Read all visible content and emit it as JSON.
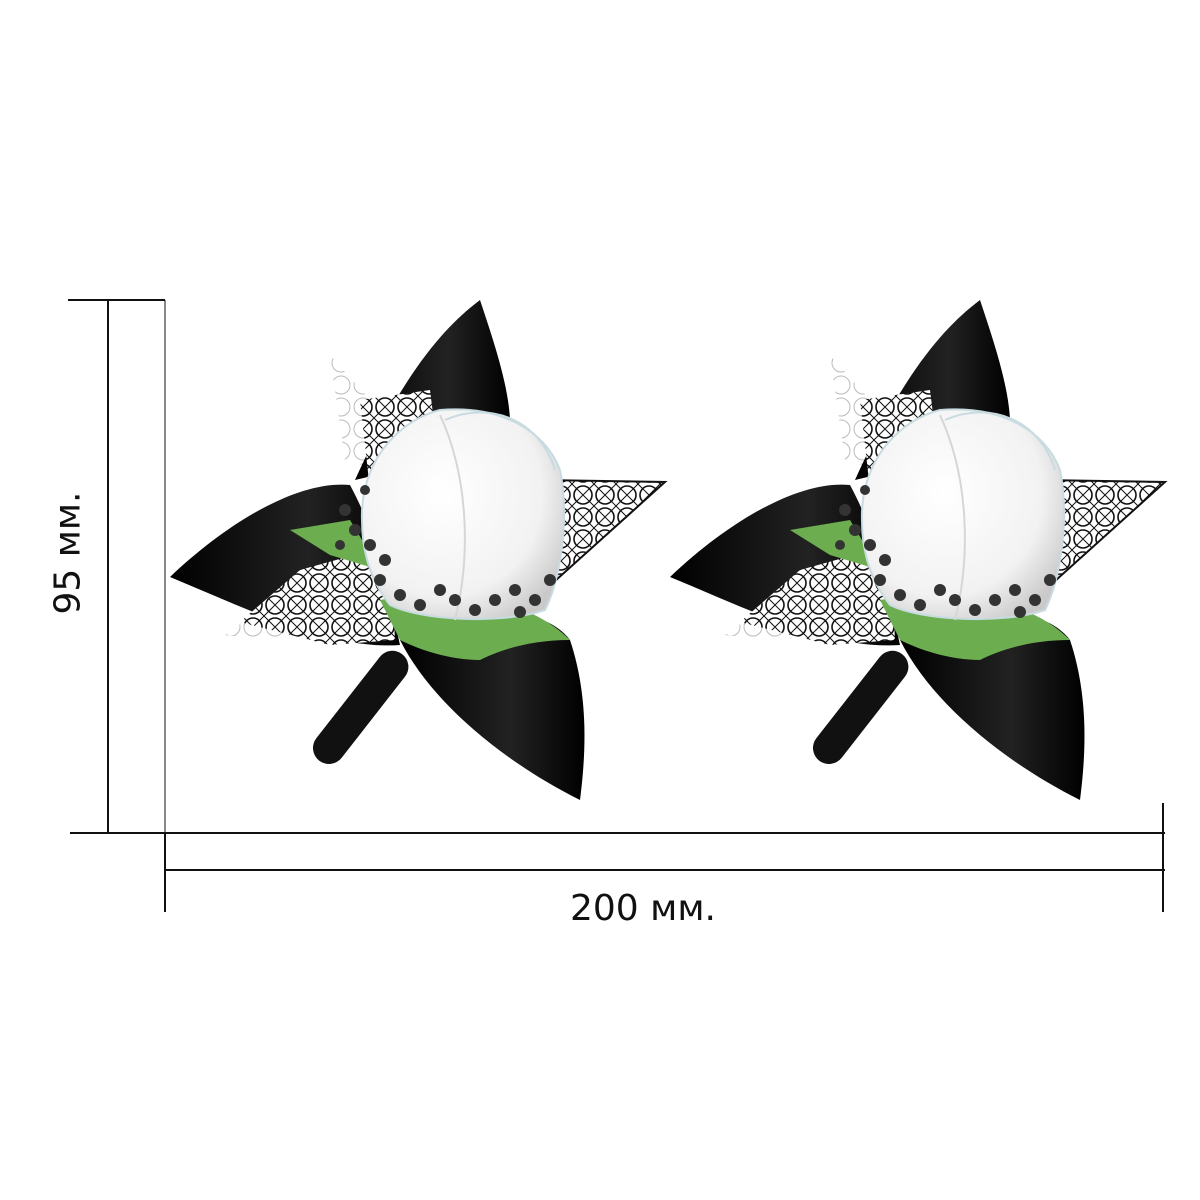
{
  "dimensions": {
    "width_label": "200 мм.",
    "height_label": "95 мм."
  },
  "product": {
    "count": 2,
    "colors": {
      "petal": "#0a0a0a",
      "rose": "#ffffff",
      "leaf": "#6cad4f",
      "lace": "#1a1a1a"
    }
  }
}
